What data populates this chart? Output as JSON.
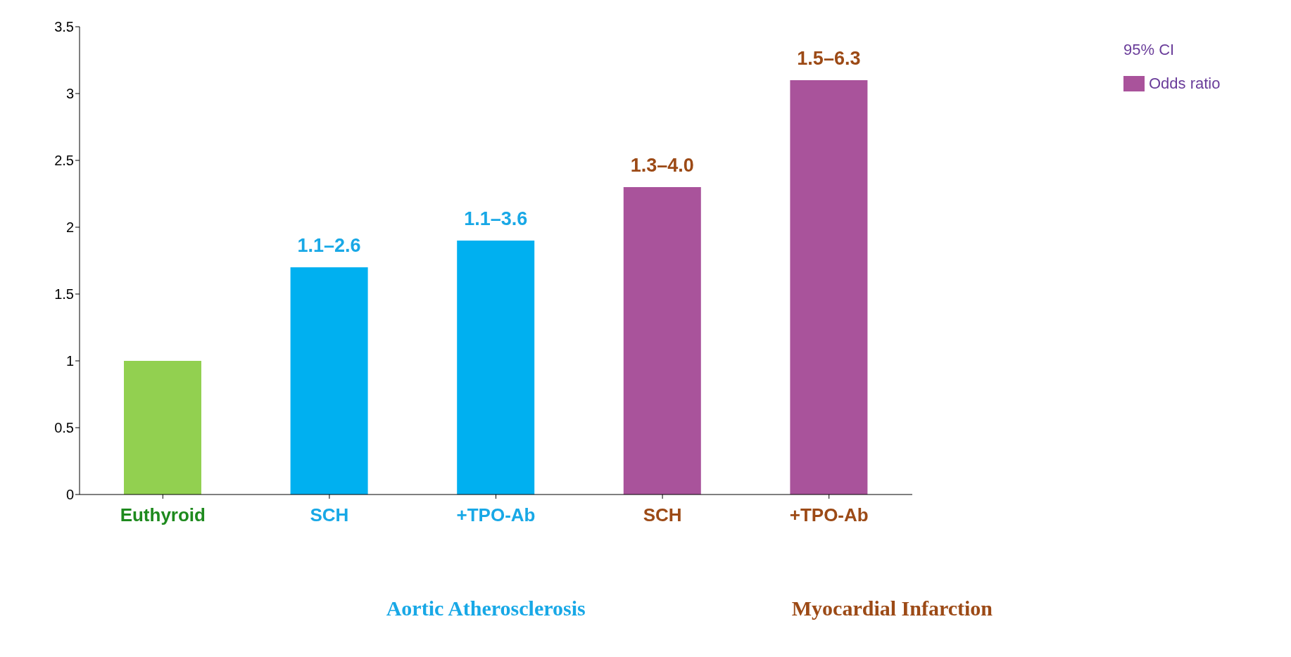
{
  "chart_data": {
    "type": "bar",
    "categories": [
      "Euthyroid",
      "SCH",
      "+TPO-Ab",
      "SCH",
      "+TPO-Ab"
    ],
    "series": [
      {
        "name": "Odds ratio",
        "color": "#a9539b",
        "colors": [
          "#92d050",
          "#00b0f0",
          "#00b0f0",
          "#a9539b",
          "#a9539b"
        ],
        "values": [
          1,
          1.7,
          1.9,
          2.3,
          3.1
        ],
        "value_labels": [
          null,
          "1.1–2.6",
          "1.1–3.6",
          "1.3–4.0",
          "1.5–6.3"
        ]
      }
    ],
    "ylim": [
      0,
      3.5
    ],
    "yticks": [
      0,
      0.5,
      1,
      1.5,
      2,
      2.5,
      3,
      3.5
    ],
    "grid": false,
    "legend": "top right",
    "legend_title": "95% CI",
    "annotations": [
      "Aortic Atherosclerosis",
      "Myocardial Infarction"
    ]
  }
}
